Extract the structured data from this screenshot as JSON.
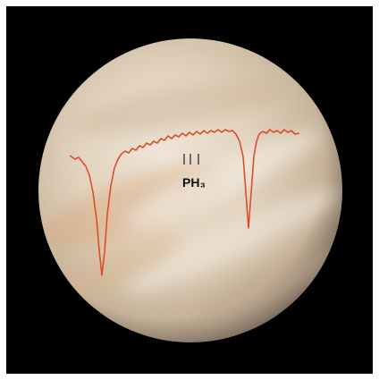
{
  "label": "PH₃"
}
